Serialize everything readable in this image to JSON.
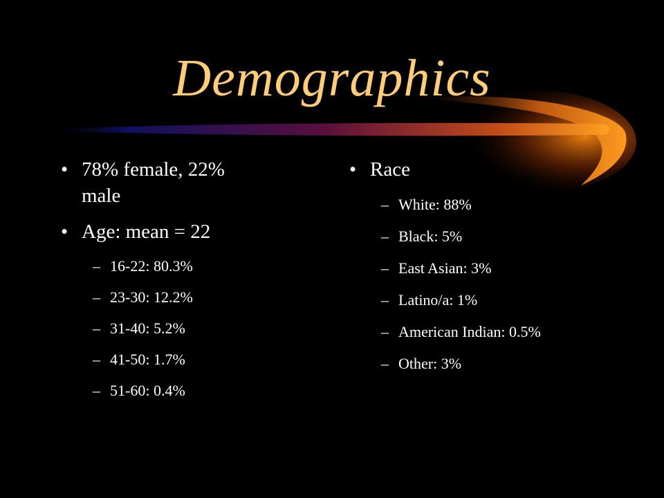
{
  "title": "Demographics",
  "left": {
    "items": [
      {
        "text": "78% female, 22% male"
      },
      {
        "text": "Age: mean = 22",
        "subitems": [
          "16-22: 80.3%",
          "23-30: 12.2%",
          "31-40: 5.2%",
          "41-50: 1.7%",
          "51-60: 0.4%"
        ]
      }
    ]
  },
  "right": {
    "items": [
      {
        "text": "Race",
        "subitems": [
          "White: 88%",
          "Black: 5%",
          "East Asian: 3%",
          "Latino/a: 1%",
          "American Indian: 0.5%",
          "Other: 3%"
        ]
      }
    ]
  }
}
